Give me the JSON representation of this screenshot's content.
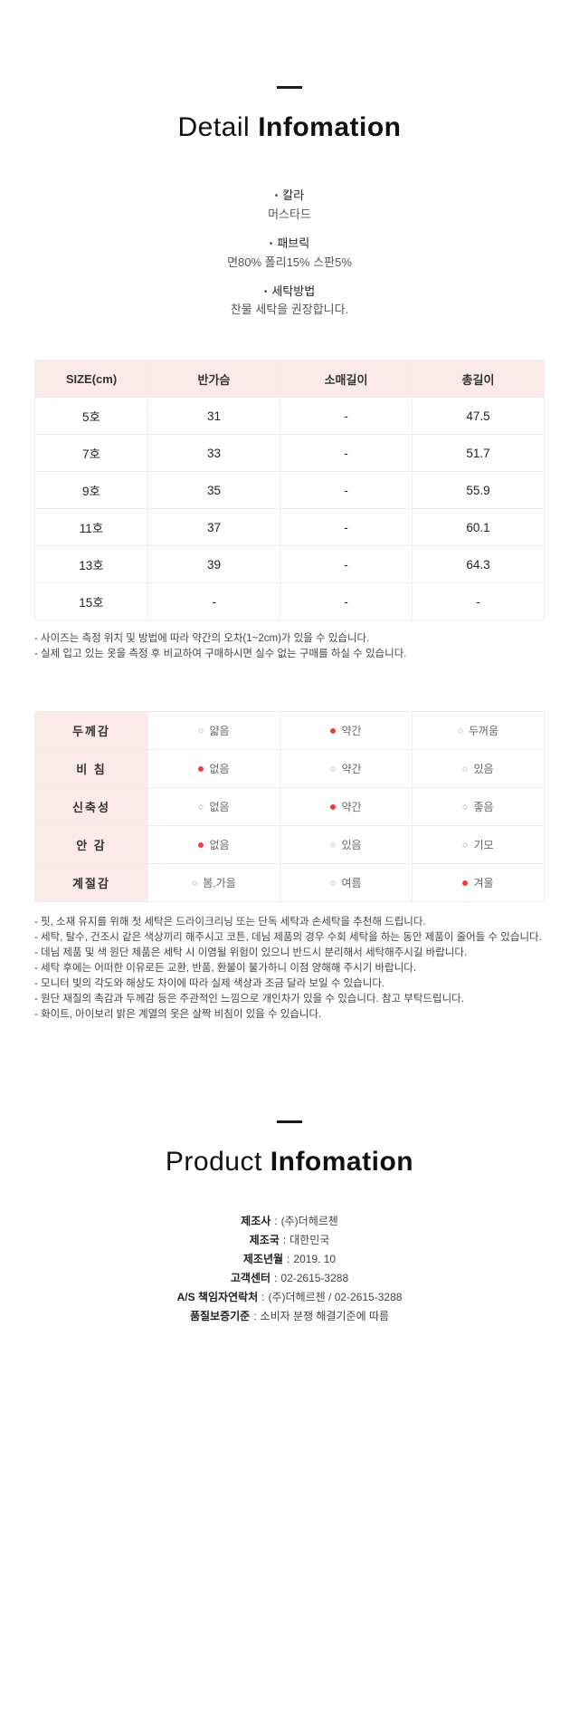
{
  "colors": {
    "accent_red": "#f23b3b",
    "header_pink": "#fce9e9",
    "table_border": "#eeeeee",
    "heading_text": "#111111"
  },
  "bullet_marker": "•",
  "detail_header": {
    "word_light": "Detail",
    "word_bold": "Infomation"
  },
  "product_header": {
    "word_light": "Product",
    "word_bold": "Infomation"
  },
  "bullets": [
    {
      "title": "칼라",
      "desc": "머스타드"
    },
    {
      "title": "패브릭",
      "desc": "면80% 폴리15% 스판5%"
    },
    {
      "title": "세탁방법",
      "desc": "찬물 세탁을 권장합니다."
    }
  ],
  "size_table": {
    "headers": [
      "SIZE(cm)",
      "반가슴",
      "소매길이",
      "총길이"
    ],
    "rows": [
      [
        "5호",
        "31",
        "-",
        "47.5"
      ],
      [
        "7호",
        "33",
        "-",
        "51.7"
      ],
      [
        "9호",
        "35",
        "-",
        "55.9"
      ],
      [
        "11호",
        "37",
        "-",
        "60.1"
      ],
      [
        "13호",
        "39",
        "-",
        "64.3"
      ],
      [
        "15호",
        "-",
        "-",
        "-"
      ]
    ]
  },
  "size_notes": [
    "- 사이즈는 측정 위치 및 방법에 따라 약간의 오차(1~2cm)가 있을 수 있습니다.",
    "- 실제 입고 있는 옷을 측정 후 비교하여 구매하시면 실수 없는 구매를 하실 수 있습니다."
  ],
  "spec_table": {
    "rows": [
      {
        "label": "두께감",
        "options": [
          {
            "label": "얇음",
            "on": false
          },
          {
            "label": "약간",
            "on": true
          },
          {
            "label": "두꺼움",
            "on": false
          }
        ]
      },
      {
        "label": "비 침",
        "options": [
          {
            "label": "없음",
            "on": true
          },
          {
            "label": "약간",
            "on": false
          },
          {
            "label": "있음",
            "on": false
          }
        ]
      },
      {
        "label": "신축성",
        "options": [
          {
            "label": "없음",
            "on": false
          },
          {
            "label": "약간",
            "on": true
          },
          {
            "label": "좋음",
            "on": false
          }
        ]
      },
      {
        "label": "안 감",
        "options": [
          {
            "label": "없음",
            "on": true
          },
          {
            "label": "있음",
            "on": false
          },
          {
            "label": "기모",
            "on": false
          }
        ]
      },
      {
        "label": "계절감",
        "options": [
          {
            "label": "봄,가을",
            "on": false
          },
          {
            "label": "여름",
            "on": false
          },
          {
            "label": "겨울",
            "on": true
          }
        ]
      }
    ]
  },
  "care_notes": [
    "- 핏, 소재 유지를 위해 첫 세탁은 드라이크리닝 또는 단독 세탁과 손세탁을 추천해 드립니다.",
    "- 세탁, 탈수, 건조시 같은 색상끼리 해주시고 코튼, 데님 제품의 경우 수회 세탁을 하는 동안 제품이 줄어들 수 있습니다.",
    "- 데님 제품 및 색 원단 제품은 세탁 시 이염될 위험이 있으니 반드시 분리해서 세탁해주시길 바랍니다.",
    "- 세탁 후에는 어떠한 이유로든 교환, 반품, 환불이 불가하니 이점 양해해 주시기 바랍니다.",
    "- 모니터 빛의 각도와 해상도 차이에 따라 실제 색상과 조금 달라 보일 수 있습니다.",
    "- 원단 재질의 촉감과 두께감 등은 주관적인 느낌으로 개인차가 있을 수 있습니다. 참고 부탁드립니다.",
    "- 화이트, 아이보리 밝은 계열의 옷은 살짝 비침이 있을 수 있습니다."
  ],
  "colon": ":",
  "product_info": [
    {
      "label": "제조사",
      "value": "(주)더헤르첸"
    },
    {
      "label": "제조국",
      "value": "대한민국"
    },
    {
      "label": "제조년월",
      "value": "2019. 10"
    },
    {
      "label": "고객센터",
      "value": "02-2615-3288"
    },
    {
      "label": "A/S 책임자연락처",
      "value": "(주)더헤르첸 / 02-2615-3288"
    },
    {
      "label": "품질보증기준",
      "value": "소비자 분쟁 해결기준에 따름"
    }
  ]
}
